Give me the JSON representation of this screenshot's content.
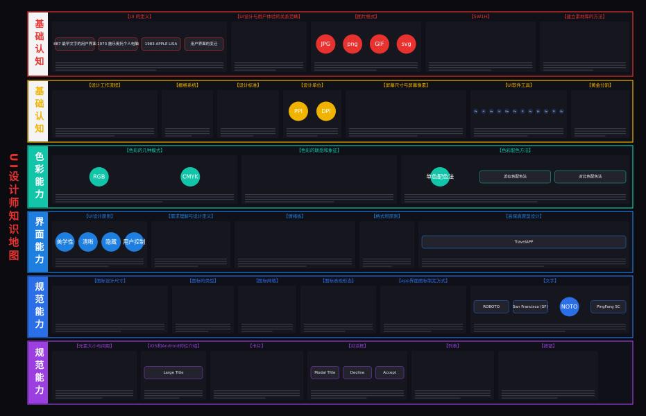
{
  "title": "UI设计师知识地图",
  "sections": [
    {
      "label": "基础认知",
      "color": "#e8322f",
      "panels": [
        {
          "title": "【UI 的定义】",
          "items": [
            "887 最早文字的用户界面",
            "1973 施乐奥托个人电脑",
            "1983 APPLE LISA",
            "用户界面的变迁"
          ]
        },
        {
          "title": "【UI设计与用户体验的关系范畴】",
          "items": []
        },
        {
          "title": "【图片格式】",
          "items": [
            "JPG",
            "png",
            "GIF",
            "svg"
          ]
        },
        {
          "title": "【5W1H】",
          "items": []
        },
        {
          "title": "【建立素材库的方法】",
          "items": []
        }
      ]
    },
    {
      "label": "基础认知",
      "color": "#f0b400",
      "panels": [
        {
          "title": "【设计工作流程】",
          "items": []
        },
        {
          "title": "【栅格系统】",
          "items": []
        },
        {
          "title": "【设计标准】",
          "items": []
        },
        {
          "title": "【设计单位】",
          "items": [
            "PPI",
            "DPI"
          ]
        },
        {
          "title": "【屏幕尺寸与屏幕像素】",
          "items": []
        },
        {
          "title": "【UI软件工具】",
          "items": [
            "Ps",
            "Ai",
            "Ae",
            "Id",
            "Dw",
            "Fw",
            "Fl",
            "Au",
            "Br",
            "Sg",
            "Pl",
            "En"
          ]
        },
        {
          "title": "【黄金分割】",
          "items": []
        }
      ]
    },
    {
      "label": "色彩能力",
      "color": "#12c4a8",
      "panels": [
        {
          "title": "【色彩的几种模式】",
          "items": [
            "RGB",
            "CMYK"
          ]
        },
        {
          "title": "【色彩的联想和象征】",
          "items": []
        },
        {
          "title": "【色彩配色方法】",
          "items": [
            "单色配色法",
            "近似色配色法",
            "对比色配色法"
          ]
        }
      ]
    },
    {
      "label": "界面能力",
      "color": "#1e7fe0",
      "panels": [
        {
          "title": "【UI设计原则】",
          "items": [
            "美学性",
            "清晰",
            "隐藏",
            "用户控制"
          ]
        },
        {
          "title": "【需求理解与设计定义】",
          "items": []
        },
        {
          "title": "【情绪板】",
          "items": []
        },
        {
          "title": "【格式塔原则】",
          "items": []
        },
        {
          "title": "【高保真原型设计】",
          "items": [
            "TravelAPP"
          ]
        }
      ]
    },
    {
      "label": "规范能力",
      "color": "#2a6fe8",
      "panels": [
        {
          "title": "【图标设计尺寸】",
          "items": []
        },
        {
          "title": "【图标的类型】",
          "items": []
        },
        {
          "title": "【图标网格】",
          "items": []
        },
        {
          "title": "【图标表现形态】",
          "items": []
        },
        {
          "title": "【app界面图标制定方式】",
          "items": []
        },
        {
          "title": "【文字】",
          "items": [
            "ROBOTO",
            "San Francisco (SF)",
            "NOTO",
            "PingFang SC"
          ]
        }
      ]
    },
    {
      "label": "规范能力",
      "color": "#9b3fe0",
      "panels": [
        {
          "title": "【元素大小与间距】",
          "items": []
        },
        {
          "title": "【iOS和Android的栏介绍】",
          "items": [
            "Large Title"
          ]
        },
        {
          "title": "【卡片】",
          "items": []
        },
        {
          "title": "【对话框】",
          "items": [
            "Modal Title",
            "Decline",
            "Accept"
          ]
        },
        {
          "title": "【列表】",
          "items": []
        },
        {
          "title": "【按钮】",
          "items": []
        }
      ]
    }
  ]
}
